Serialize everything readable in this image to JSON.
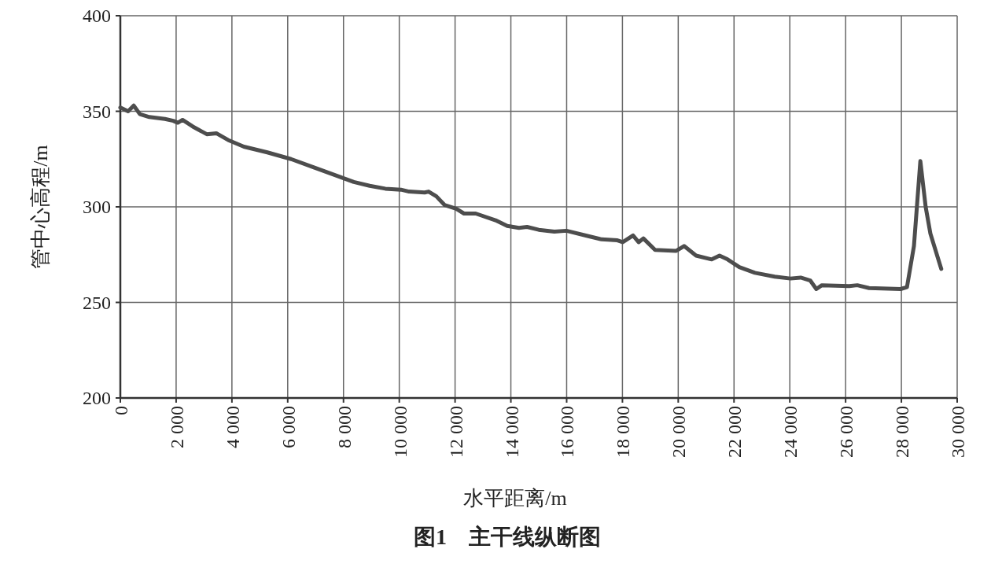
{
  "chart_data": {
    "type": "line",
    "title": "图1　主干线纵断图",
    "xlabel": "水平距离/m",
    "ylabel": "管中心高程/m",
    "xlim": [
      0,
      30000
    ],
    "ylim": [
      200,
      400
    ],
    "xticks": [
      0,
      {
        "value": 2000,
        "label": "2 000"
      },
      {
        "value": 4000,
        "label": "4 000"
      },
      {
        "value": 6000,
        "label": "6 000"
      },
      {
        "value": 8000,
        "label": "8 000"
      },
      {
        "value": 10000,
        "label": "10 000"
      },
      {
        "value": 12000,
        "label": "12 000"
      },
      {
        "value": 14000,
        "label": "14 000"
      },
      {
        "value": 16000,
        "label": "16 000"
      },
      {
        "value": 18000,
        "label": "18 000"
      },
      {
        "value": 20000,
        "label": "20 000"
      },
      {
        "value": 22000,
        "label": "22 000"
      },
      {
        "value": 24000,
        "label": "24 000"
      },
      {
        "value": 26000,
        "label": "26 000"
      },
      {
        "value": 28000,
        "label": "28 000"
      },
      {
        "value": 30000,
        "label": "30 000"
      }
    ],
    "yticks": [
      200,
      250,
      300,
      350,
      400
    ],
    "grid": true,
    "marker": "none",
    "line_style": "solid",
    "series": [
      {
        "color": "#4d4d4d",
        "x": [
          0,
          280,
          480,
          700,
          1040,
          1600,
          1900,
          2060,
          2230,
          2600,
          3100,
          3440,
          3860,
          4430,
          5270,
          6120,
          6960,
          7810,
          8370,
          8940,
          9500,
          10060,
          10350,
          10910,
          11050,
          11330,
          11620,
          12040,
          12320,
          12740,
          13450,
          13870,
          14290,
          14580,
          15000,
          15560,
          15990,
          16690,
          17250,
          17820,
          18010,
          18380,
          18580,
          18750,
          19170,
          19930,
          20210,
          20640,
          21200,
          21480,
          21770,
          22190,
          22750,
          23460,
          24020,
          24390,
          24730,
          24950,
          25150,
          26130,
          26420,
          26840,
          27970,
          28200,
          28450,
          28680,
          28870,
          29040,
          29430
        ],
        "values": [
          352,
          350,
          353,
          348.5,
          347,
          346,
          345,
          344,
          345.5,
          342,
          338,
          338.5,
          335,
          331.5,
          328.5,
          325,
          320.5,
          316,
          313,
          311,
          309.5,
          309,
          308,
          307.5,
          308,
          305.5,
          301,
          299,
          296.5,
          296.5,
          293,
          290,
          289,
          289.5,
          288,
          287,
          287.5,
          285,
          283,
          282.5,
          281.5,
          285,
          281.5,
          283.5,
          277.5,
          277,
          279.5,
          274.5,
          272.5,
          274.5,
          272.5,
          268.5,
          265.5,
          263.5,
          262.5,
          263,
          261.5,
          257,
          259,
          258.5,
          259,
          257.5,
          257,
          258,
          279.5,
          324,
          300,
          286,
          267.5
        ]
      }
    ]
  }
}
